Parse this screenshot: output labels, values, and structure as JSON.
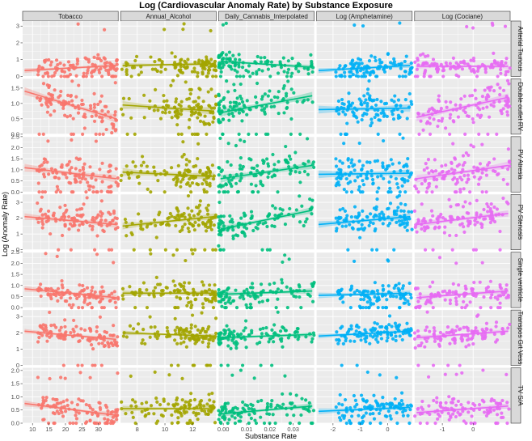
{
  "chart_data": {
    "type": "scatter",
    "title": "Log (Cardiovascular Anomaly Rate) by Substance Exposure",
    "xlabel": "Substance Rate",
    "ylabel": "Log (Anomaly Rate)",
    "facet_columns": [
      {
        "name": "Tobacco",
        "color": "#F8766D",
        "xlim": [
          7,
          36
        ],
        "ticks": [
          10,
          15,
          20,
          25,
          30
        ]
      },
      {
        "name": "Annual_Alcohol",
        "color": "#A3A500",
        "xlim": [
          6.8,
          13.7
        ],
        "ticks": [
          8,
          10,
          12
        ]
      },
      {
        "name": "Daily_Cannabis_Interpolated",
        "color": "#00BF7D",
        "xlim": [
          -0.002,
          0.039
        ],
        "ticks": [
          0.0,
          0.01,
          0.02,
          0.03
        ]
      },
      {
        "name": "Log (Amphetamine)",
        "color": "#00B0F6",
        "xlim": [
          -2.6,
          0.9
        ],
        "ticks": [
          -2,
          -1,
          0
        ]
      },
      {
        "name": "Log (Cociane)",
        "color": "#E76BF3",
        "xlim": [
          -1.9,
          1.2
        ],
        "ticks": [
          -1,
          0
        ]
      }
    ],
    "facet_rows": [
      {
        "name": "Arterial Truncus",
        "ylim": [
          0,
          3.3
        ],
        "ticks": [
          0,
          1,
          2,
          3
        ],
        "trends": [
          [
            0.35,
            0.65
          ],
          [
            0.65,
            0.75
          ],
          [
            0.9,
            0.55
          ],
          [
            0.35,
            0.65
          ],
          [
            0.6,
            0.6
          ]
        ],
        "center": 0.55,
        "spread": 0.45
      },
      {
        "name": "Double outlet RV",
        "ylim": [
          0,
          1.8
        ],
        "ticks": [
          0.0,
          0.5,
          1.0,
          1.5
        ],
        "trends": [
          [
            1.4,
            0.5
          ],
          [
            0.95,
            0.75
          ],
          [
            0.7,
            1.25
          ],
          [
            0.8,
            0.85
          ],
          [
            0.55,
            1.2
          ]
        ],
        "center": 0.8,
        "spread": 0.4
      },
      {
        "name": "PV Atresia",
        "ylim": [
          0,
          2.5
        ],
        "ticks": [
          0.0,
          0.5,
          1.0,
          1.5,
          2.0,
          2.5
        ],
        "trends": [
          [
            1.1,
            0.6
          ],
          [
            0.9,
            0.7
          ],
          [
            0.6,
            1.2
          ],
          [
            0.8,
            0.85
          ],
          [
            0.6,
            1.2
          ]
        ],
        "center": 0.8,
        "spread": 0.55
      },
      {
        "name": "PV Stenosis",
        "ylim": [
          0,
          3.5
        ],
        "ticks": [
          0,
          1,
          2,
          3
        ],
        "trends": [
          [
            2.1,
            1.6
          ],
          [
            1.5,
            2.1
          ],
          [
            1.3,
            2.5
          ],
          [
            1.6,
            2.1
          ],
          [
            1.6,
            2.3
          ]
        ],
        "center": 1.8,
        "spread": 0.65
      },
      {
        "name": "Single ventricle",
        "ylim": [
          0,
          2.5
        ],
        "ticks": [
          0.0,
          0.5,
          1.0,
          1.5,
          2.0,
          2.5
        ],
        "trends": [
          [
            0.85,
            0.45
          ],
          [
            0.65,
            0.65
          ],
          [
            0.6,
            0.75
          ],
          [
            0.55,
            0.65
          ],
          [
            0.45,
            0.75
          ]
        ],
        "center": 0.6,
        "spread": 0.4
      },
      {
        "name": "Transpos Grt Vess",
        "ylim": [
          0,
          3.4
        ],
        "ticks": [
          0,
          1,
          2,
          3
        ],
        "trends": [
          [
            2.1,
            1.6
          ],
          [
            2.0,
            1.8
          ],
          [
            1.7,
            1.9
          ],
          [
            1.8,
            2.1
          ],
          [
            1.7,
            2.1
          ]
        ],
        "center": 1.9,
        "spread": 0.45
      },
      {
        "name": "TV S/A",
        "ylim": [
          0,
          2.1
        ],
        "ticks": [
          0.0,
          0.5,
          1.0,
          1.5,
          2.0
        ],
        "trends": [
          [
            0.75,
            0.3
          ],
          [
            0.55,
            0.55
          ],
          [
            0.35,
            0.65
          ],
          [
            0.45,
            0.6
          ],
          [
            0.4,
            0.65
          ]
        ],
        "center": 0.5,
        "spread": 0.35
      }
    ],
    "points_per_panel": 110,
    "smoother": "linear fit with confidence band",
    "grid": true,
    "panel_background": "#EBEBEB",
    "strip_background": "#D9D9D9",
    "legend": "none"
  }
}
